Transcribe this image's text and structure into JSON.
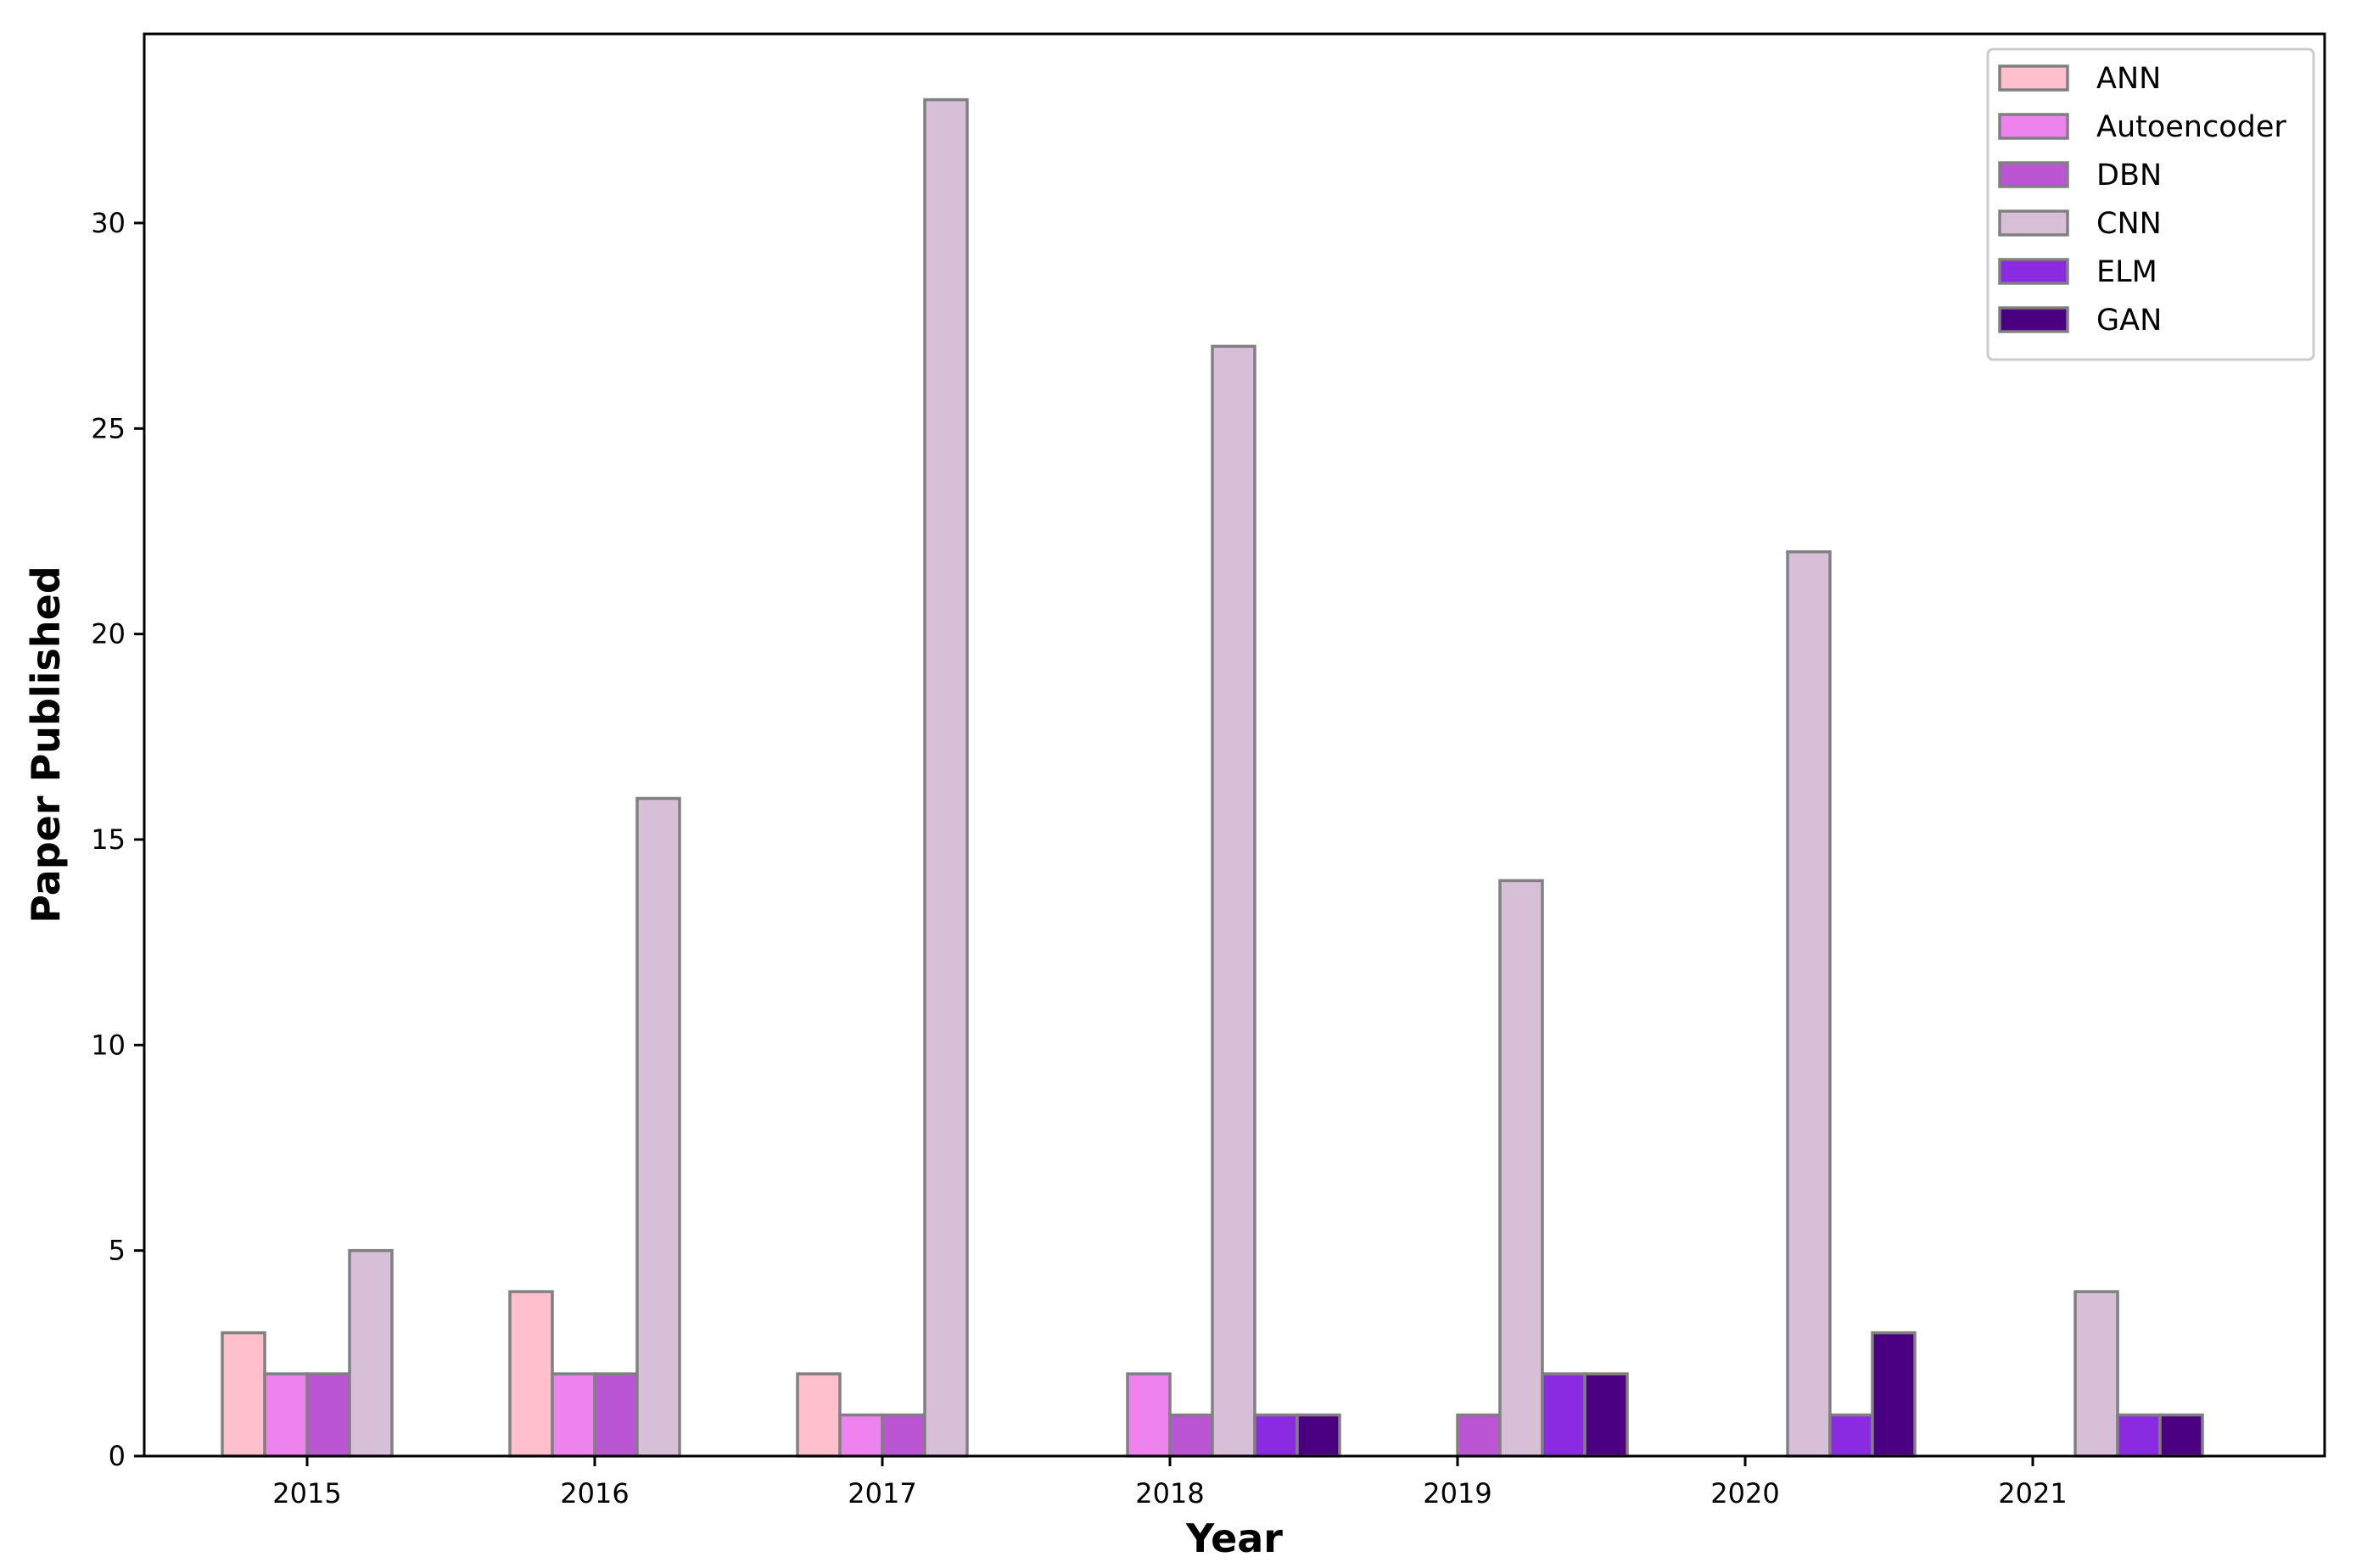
{
  "chart_data": {
    "type": "bar",
    "title": "",
    "xlabel": "Year",
    "ylabel": "Paper Published",
    "categories": [
      "2015",
      "2016",
      "2017",
      "2018",
      "2019",
      "2020",
      "2021"
    ],
    "yticks": [
      0,
      5,
      10,
      15,
      20,
      25,
      30
    ],
    "ylim": [
      0,
      34.6
    ],
    "grid": false,
    "legend_position": "top-right",
    "bar_edge_color": "#808080",
    "series": [
      {
        "name": "ANN",
        "color": "#FFC0CB",
        "values": [
          3,
          4,
          2,
          0,
          0,
          0,
          0
        ]
      },
      {
        "name": "Autoencoder",
        "color": "#EE82EE",
        "values": [
          2,
          2,
          1,
          2,
          0,
          0,
          0
        ]
      },
      {
        "name": "DBN",
        "color": "#BA55D3",
        "values": [
          2,
          2,
          1,
          1,
          1,
          0,
          0
        ]
      },
      {
        "name": "CNN",
        "color": "#D8BFD8",
        "values": [
          5,
          16,
          33,
          27,
          14,
          22,
          4
        ]
      },
      {
        "name": "ELM",
        "color": "#8A2BE2",
        "values": [
          0,
          0,
          0,
          1,
          2,
          1,
          1
        ]
      },
      {
        "name": "GAN",
        "color": "#4B0082",
        "values": [
          0,
          0,
          0,
          1,
          2,
          3,
          1
        ]
      }
    ]
  }
}
